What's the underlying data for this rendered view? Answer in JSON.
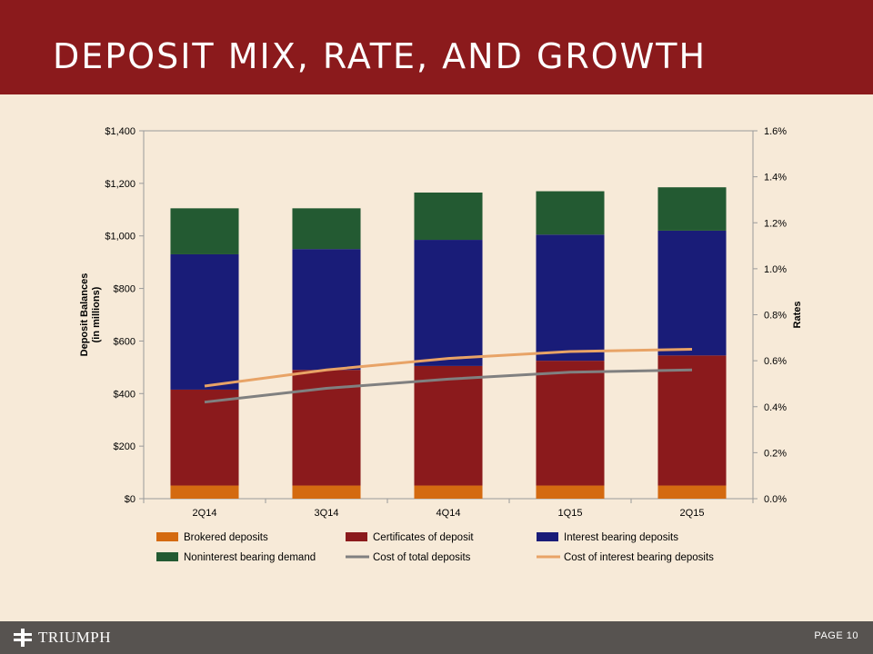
{
  "header": {
    "title": "DEPOSIT MIX, RATE, AND GROWTH"
  },
  "footer": {
    "logo_text": "TRIUMPH",
    "page_label": "PAGE",
    "page_number": "10"
  },
  "colors": {
    "header_bg": "#8b1a1c",
    "footer_bg": "#575350",
    "brokered": "#d46a10",
    "certificates": "#8b1a1c",
    "interest_bearing": "#191c78",
    "noninterest": "#235a32",
    "cost_total": "#808080",
    "cost_interest": "#e8a366"
  },
  "chart_data": {
    "type": "bar",
    "stacked": true,
    "categories": [
      "2Q14",
      "3Q14",
      "4Q14",
      "1Q15",
      "2Q15"
    ],
    "series": [
      {
        "name": "Brokered deposits",
        "axis": "left",
        "values": [
          50,
          50,
          50,
          50,
          50
        ]
      },
      {
        "name": "Certificates of deposit",
        "axis": "left",
        "values": [
          365,
          440,
          455,
          475,
          495
        ]
      },
      {
        "name": "Interest bearing deposits",
        "axis": "left",
        "values": [
          515,
          460,
          480,
          480,
          475
        ]
      },
      {
        "name": "Noninterest bearing demand",
        "axis": "left",
        "values": [
          175,
          155,
          180,
          165,
          165
        ]
      }
    ],
    "line_series": [
      {
        "name": "Cost of total deposits",
        "axis": "right",
        "values": [
          0.42,
          0.48,
          0.52,
          0.55,
          0.56
        ]
      },
      {
        "name": "Cost of interest bearing deposits",
        "axis": "right",
        "values": [
          0.49,
          0.56,
          0.61,
          0.64,
          0.65
        ]
      }
    ],
    "legend_order": [
      "Brokered deposits",
      "Certificates of deposit",
      "Interest bearing deposits",
      "Noninterest bearing demand",
      "Cost of total deposits",
      "Cost of interest bearing deposits"
    ],
    "ylabel_lines": [
      "Deposit Balances",
      "(in millions)"
    ],
    "y2label": "Rates",
    "ylim": [
      0,
      1400
    ],
    "y2lim": [
      0,
      1.6
    ],
    "yticks": [
      "$0",
      "$200",
      "$400",
      "$600",
      "$800",
      "$1,000",
      "$1,200",
      "$1,400"
    ],
    "y2ticks": [
      "0.0%",
      "0.2%",
      "0.4%",
      "0.6%",
      "0.8%",
      "1.0%",
      "1.2%",
      "1.4%",
      "1.6%"
    ],
    "legend_position": "bottom",
    "grid": false
  }
}
